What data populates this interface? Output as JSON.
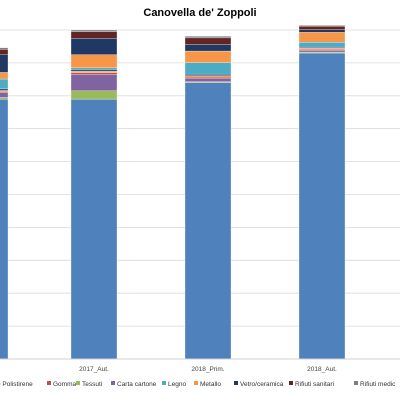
{
  "chart_data": {
    "type": "bar",
    "stacked": true,
    "title": "Canovella de' Zoppoli",
    "xlabel": "",
    "ylabel": "",
    "ylim": [
      0,
      100
    ],
    "grid": true,
    "legend_position": "bottom",
    "categories": [
      "",
      "2017_Aut.",
      "2018_Prim.",
      "2018_Aut."
    ],
    "series": [
      {
        "name": "Plastica e Polistirene",
        "color": "#4f81bd",
        "values": [
          79,
          79,
          84,
          93
        ]
      },
      {
        "name": "",
        "color": "#9bbb59",
        "values": [
          0.5,
          2.5,
          0.3,
          0.3
        ]
      },
      {
        "name": "",
        "color": "#8064a2",
        "values": [
          1.5,
          5,
          1,
          0.5
        ]
      },
      {
        "name": "Gomma",
        "color": "#c0504d",
        "values": [
          0.3,
          0.5,
          0.4,
          0.3
        ]
      },
      {
        "name": "Tessuti",
        "color": "#f79646",
        "values": [
          0.3,
          0.5,
          0.4,
          0.4
        ]
      },
      {
        "name": "Carta cartone",
        "color": "#2c4d75",
        "values": [
          0.5,
          0.5,
          0.5,
          0.3
        ]
      },
      {
        "name": "Legno",
        "color": "#4bacc6",
        "values": [
          3,
          0.5,
          3.5,
          1.5
        ]
      },
      {
        "name": "Metallo",
        "color": "#f79646",
        "values": [
          2,
          4,
          3.5,
          3
        ]
      },
      {
        "name": "Vetro/ceramica",
        "color": "#1f3864",
        "values": [
          5.5,
          5,
          2,
          0.8
        ]
      },
      {
        "name": "Rifiuti sanitari",
        "color": "#632523",
        "values": [
          1.5,
          2,
          2,
          1
        ]
      },
      {
        "name": "Rifiuti medici",
        "color": "#7f7f7f",
        "values": [
          0.5,
          0.5,
          0.5,
          0.3
        ]
      }
    ],
    "legend": [
      {
        "label": "e Polistirene",
        "color": "#4f81bd"
      },
      {
        "label": "Gomma",
        "color": "#c0504d"
      },
      {
        "label": "Tessuti",
        "color": "#9bbb59"
      },
      {
        "label": "Carta cartone",
        "color": "#8064a2"
      },
      {
        "label": "Legno",
        "color": "#4bacc6"
      },
      {
        "label": "Metallo",
        "color": "#f79646"
      },
      {
        "label": "Vetro/ceramica",
        "color": "#1f3864"
      },
      {
        "label": "Rifiuti sanitari",
        "color": "#632523"
      },
      {
        "label": "Rifiuti medic",
        "color": "#7f7f7f"
      }
    ]
  }
}
